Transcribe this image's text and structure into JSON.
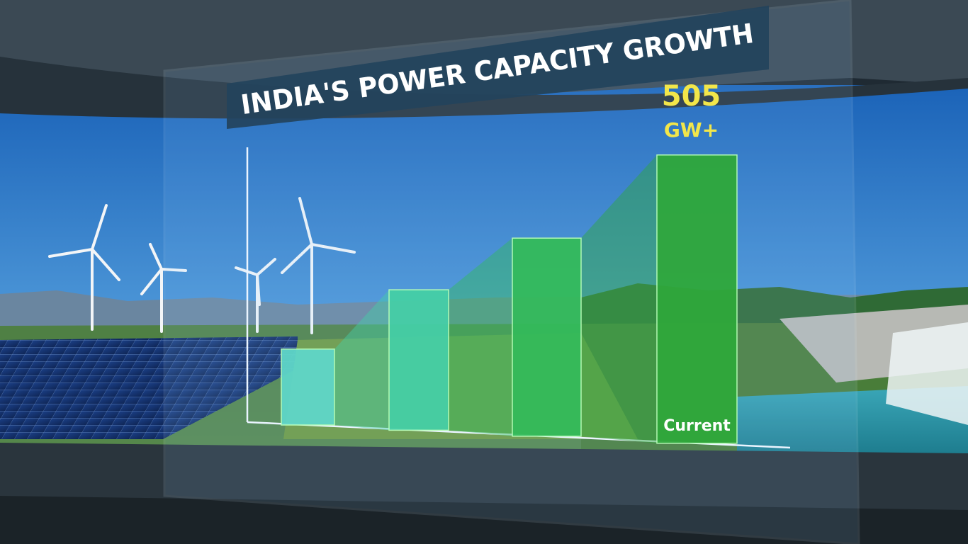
{
  "chart_data": {
    "type": "bar",
    "title": "INDIA'S POWER CAPACITY GROWTH",
    "categories": [
      null,
      null,
      null,
      "Current"
    ],
    "values": [
      133,
      246,
      347,
      505
    ],
    "value_labels": [
      null,
      null,
      null,
      "505 GW+"
    ],
    "colors": [
      "#5fd6c8",
      "#45cfa6",
      "#33bb5a",
      "#2fa83a"
    ]
  }
}
